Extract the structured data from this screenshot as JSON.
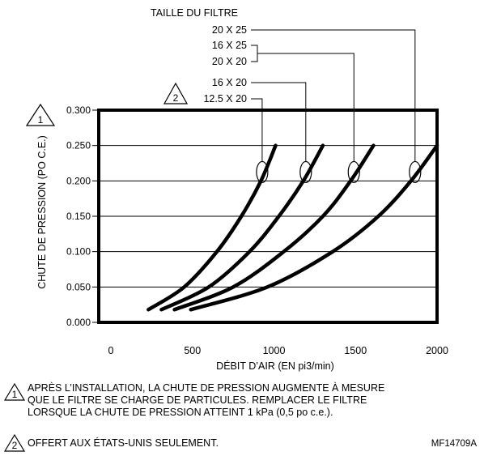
{
  "chart_data": {
    "type": "line",
    "legend_title": "TAILLE DU FILTRE",
    "legend_entries": [
      "20 X 25",
      "16 X 25",
      "20 X 20",
      "16 X 20",
      "12.5 X 20"
    ],
    "legend_note_marker": "2",
    "ylabel": "CHUTE DE PRESSION (PO C.E.)",
    "ylabel_note_marker": "1",
    "xlabel": "DÉBIT D’AIR (EN pi3/min)",
    "xlim": [
      0,
      2000
    ],
    "ylim": [
      0,
      0.3
    ],
    "x_ticks": [
      "0",
      "500",
      "1000",
      "1500",
      "2000"
    ],
    "y_ticks": [
      "0.000",
      "0.050",
      "0.100",
      "0.150",
      "0.200",
      "0.250",
      "0.300"
    ],
    "grid": "horizontal",
    "series": [
      {
        "x": [
          230,
          450,
          650,
          800,
          920,
          1010
        ],
        "y": [
          0.018,
          0.05,
          0.1,
          0.15,
          0.2,
          0.25
        ]
      },
      {
        "x": [
          310,
          600,
          850,
          1030,
          1180,
          1300
        ],
        "y": [
          0.018,
          0.05,
          0.1,
          0.15,
          0.2,
          0.25
        ]
      },
      {
        "x": [
          390,
          750,
          1060,
          1300,
          1470,
          1610
        ],
        "y": [
          0.018,
          0.05,
          0.1,
          0.15,
          0.2,
          0.25
        ]
      },
      {
        "x": [
          490,
          960,
          1360,
          1640,
          1840,
          2000
        ],
        "y": [
          0.018,
          0.05,
          0.1,
          0.15,
          0.2,
          0.25
        ]
      }
    ]
  },
  "notes": [
    {
      "marker": "1",
      "lines": [
        "APRÈS L’INSTALLATION, LA CHUTE DE PRESSION AUGMENTE À MESURE",
        "QUE LE FILTRE SE CHARGE DE PARTICULES. REMPLACER LE FILTRE",
        "LORSQUE LA CHUTE DE PRESSION ATTEINT  1 kPa (0,5 po c.e.)."
      ]
    },
    {
      "marker": "2",
      "lines": [
        "OFFERT AUX ÉTATS-UNIS SEULEMENT."
      ]
    }
  ],
  "figure_code": "MF14709A"
}
